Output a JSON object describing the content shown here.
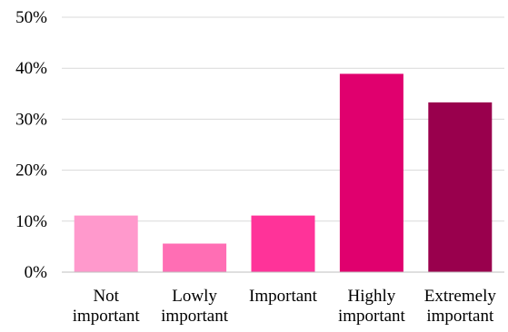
{
  "chart_data": {
    "type": "bar",
    "title": "",
    "xlabel": "",
    "ylabel": "",
    "categories": [
      [
        "Not",
        "important"
      ],
      [
        "Lowly",
        "important"
      ],
      [
        "Important"
      ],
      [
        "Highly",
        "important"
      ],
      [
        "Extremely",
        "important"
      ]
    ],
    "values": [
      11.1,
      5.6,
      11.1,
      38.9,
      33.3
    ],
    "colors": [
      "#ff99cc",
      "#ff6eb4",
      "#ff3399",
      "#e0006e",
      "#99004d"
    ],
    "ylim": [
      0,
      50
    ],
    "yticks": [
      "0%",
      "10%",
      "20%",
      "30%",
      "40%",
      "50%"
    ],
    "ytick_values": [
      0,
      10,
      20,
      30,
      40,
      50
    ],
    "grid": true,
    "legend": "none"
  }
}
